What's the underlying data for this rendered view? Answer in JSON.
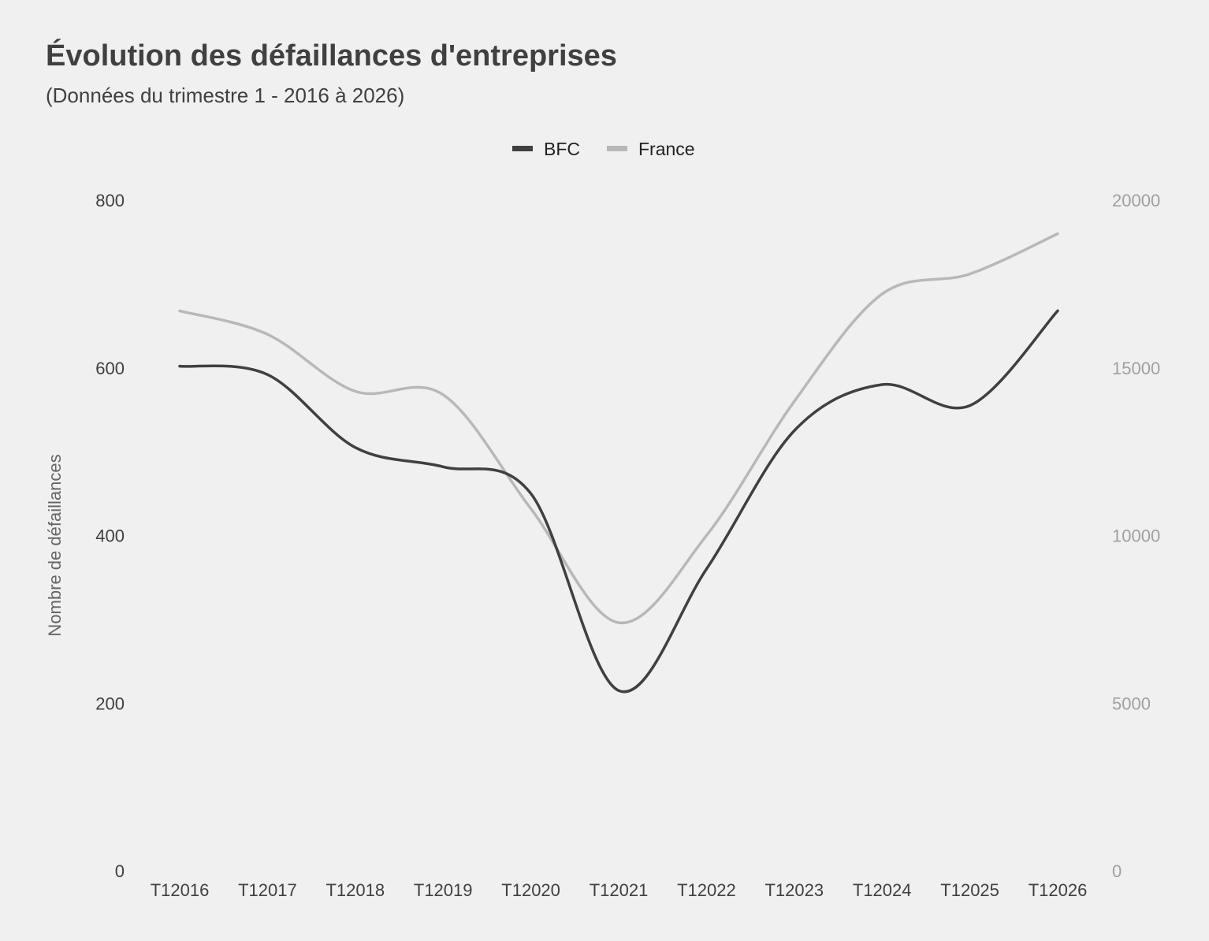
{
  "title": "Évolution des défaillances d'entreprises",
  "subtitle": "(Données du trimestre 1 - 2016 à 2026)",
  "chart_data": {
    "type": "line",
    "title": "Évolution des défaillances d'entreprises",
    "subtitle": "(Données du trimestre 1 - 2016 à 2026)",
    "categories": [
      "T12016",
      "T12017",
      "T12018",
      "T12019",
      "T12020",
      "T12021",
      "T12022",
      "T12023",
      "T12024",
      "T12025",
      "T12026"
    ],
    "ylabel": "Nombre de défaillances",
    "y_left": {
      "range": [
        0,
        800
      ],
      "ticks": [
        "0",
        "200",
        "400",
        "600",
        "800"
      ]
    },
    "y_right": {
      "range": [
        0,
        20000
      ],
      "ticks": [
        "0",
        "5000",
        "10000",
        "15000",
        "20000"
      ]
    },
    "grid": false,
    "legend_position": "top",
    "series": [
      {
        "name": "BFC",
        "axis": "left",
        "color": "#404040",
        "values": [
          602,
          592,
          505,
          482,
          450,
          215,
          360,
          525,
          580,
          555,
          668
        ]
      },
      {
        "name": "France",
        "axis": "right",
        "color": "#b8b8b8",
        "values": [
          16700,
          16000,
          14300,
          14200,
          10800,
          7400,
          10000,
          14000,
          17200,
          17800,
          19000
        ]
      }
    ]
  }
}
